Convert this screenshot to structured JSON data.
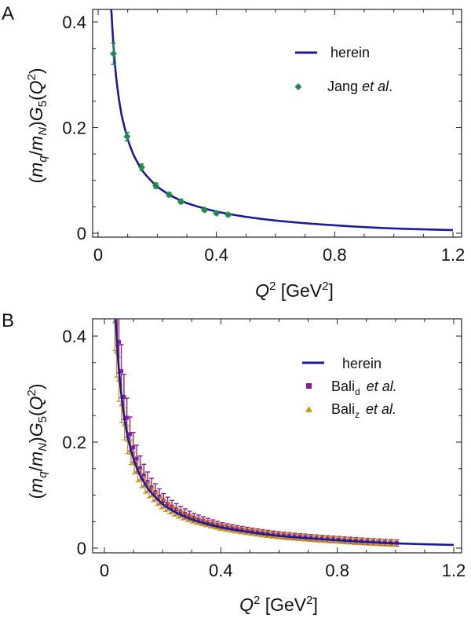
{
  "colors": {
    "curve": "#1a1a9c",
    "jang": "#1f8a4c",
    "bali_d": "#8e1f8e",
    "bali_z": "#c9971e",
    "axis": "#222222"
  },
  "chart_data": [
    {
      "panel": "A",
      "type": "line",
      "xlabel": "Q² [GeV²]",
      "ylabel": "(mq/mN)G5(Q²)",
      "xlim": [
        0,
        1.2
      ],
      "ylim": [
        0,
        0.42
      ],
      "xticks": [
        0,
        0.4,
        0.8,
        1.2
      ],
      "xticklabels": [
        "0",
        "0.4",
        "0.8",
        "1.2"
      ],
      "yticks": [
        0,
        0.2,
        0.4
      ],
      "yticklabels": [
        "0",
        "0.2",
        "0.4"
      ],
      "legend": {
        "position": "top-right",
        "entries": [
          "herein",
          "Jang et al."
        ]
      },
      "series": [
        {
          "name": "herein",
          "kind": "line",
          "x": [
            0.045,
            0.05,
            0.06,
            0.07,
            0.08,
            0.1,
            0.12,
            0.15,
            0.2,
            0.25,
            0.3,
            0.4,
            0.5,
            0.6,
            0.8,
            1.0,
            1.2
          ],
          "y": [
            0.42,
            0.37,
            0.3,
            0.255,
            0.222,
            0.178,
            0.148,
            0.118,
            0.088,
            0.07,
            0.057,
            0.041,
            0.031,
            0.024,
            0.015,
            0.009,
            0.006
          ]
        },
        {
          "name": "Jang et al.",
          "kind": "scatter",
          "x": [
            0.052,
            0.098,
            0.147,
            0.195,
            0.24,
            0.28,
            0.36,
            0.4,
            0.44
          ],
          "y": [
            0.34,
            0.183,
            0.125,
            0.09,
            0.073,
            0.06,
            0.044,
            0.038,
            0.035
          ],
          "err": [
            0.02,
            0.008,
            0.006,
            0.005,
            0.004,
            0.004,
            0.003,
            0.003,
            0.003
          ]
        }
      ]
    },
    {
      "panel": "B",
      "type": "line",
      "xlabel": "Q² [GeV²]",
      "ylabel": "(mq/mN)G5(Q²)",
      "xlim": [
        0,
        1.2
      ],
      "ylim": [
        0,
        0.42
      ],
      "xticks": [
        0,
        0.4,
        0.8,
        1.2
      ],
      "xticklabels": [
        "0",
        "0.4",
        "0.8",
        "1.2"
      ],
      "yticks": [
        0,
        0.2,
        0.4
      ],
      "yticklabels": [
        "0",
        "0.2",
        "0.4"
      ],
      "legend": {
        "position": "top-right",
        "entries": [
          "herein",
          "Bali_d et al.",
          "Bali_z et al."
        ]
      },
      "series": [
        {
          "name": "herein",
          "kind": "line",
          "x": [
            0.04,
            0.045,
            0.05,
            0.06,
            0.07,
            0.08,
            0.1,
            0.12,
            0.15,
            0.2,
            0.25,
            0.3,
            0.4,
            0.5,
            0.6,
            0.8,
            1.0,
            1.2
          ],
          "y": [
            0.42,
            0.37,
            0.335,
            0.28,
            0.24,
            0.21,
            0.168,
            0.14,
            0.112,
            0.083,
            0.066,
            0.054,
            0.039,
            0.03,
            0.023,
            0.015,
            0.009,
            0.006
          ]
        },
        {
          "name": "Bali_d et al.",
          "kind": "band",
          "x_from": 0.04,
          "x_to": 1.0,
          "n": 60,
          "scale": 1.07,
          "errfrac": 0.15
        },
        {
          "name": "Bali_z et al.",
          "kind": "band",
          "x_from": 0.04,
          "x_to": 1.0,
          "n": 60,
          "scale": 1.02,
          "errfrac": 0.13
        }
      ]
    }
  ],
  "labels": {
    "panel_a": "A",
    "panel_b": "B",
    "legend_herein": "herein",
    "legend_jang_name": "Jang",
    "legend_etal": "et al",
    "legend_etal_dot": "et al.",
    "legend_bali": "Bali",
    "legend_sub_d": "d",
    "legend_sub_z": "z"
  }
}
